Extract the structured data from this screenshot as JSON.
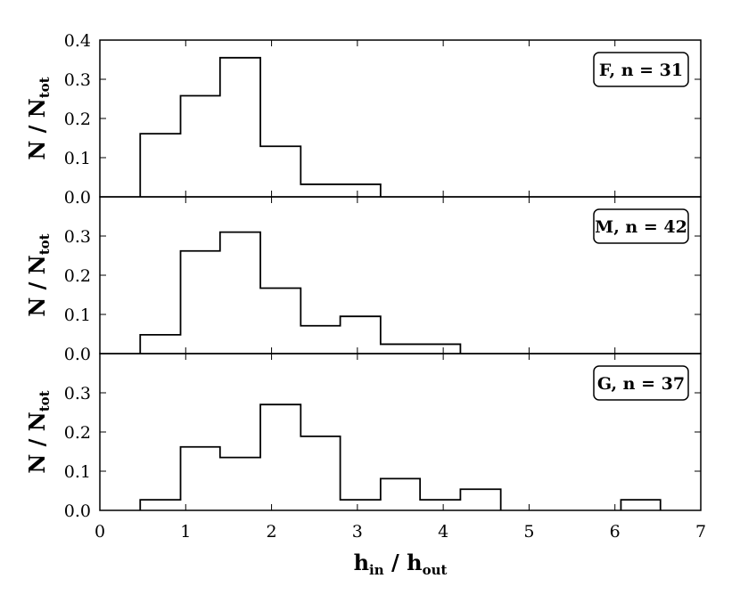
{
  "chart_data": {
    "type": "bar",
    "histtype": "step",
    "layout": "three vertically stacked panels sharing the x axis",
    "xlabel": {
      "main1": "h",
      "sub1": "in",
      "sep": " / ",
      "main2": "h",
      "sub2": "out"
    },
    "xlim": [
      0,
      7
    ],
    "xticks": [
      "0",
      "1",
      "2",
      "3",
      "4",
      "5",
      "6",
      "7"
    ],
    "grid": false,
    "bin_edges": [
      0.47,
      0.94,
      1.4,
      1.87,
      2.34,
      2.8,
      3.27,
      3.73,
      4.2,
      4.67,
      5.13,
      5.6,
      6.07,
      6.53
    ],
    "panels": [
      {
        "legend": "F, n = 31",
        "legend_position": "top-right",
        "ylabel": {
          "main1": "N",
          "sep": " / ",
          "main2": "N",
          "sub2": "tot"
        },
        "ylim": [
          0,
          0.4
        ],
        "yticks": [
          "0.0",
          "0.1",
          "0.2",
          "0.3",
          "0.4"
        ],
        "values": [
          0.161,
          0.258,
          0.355,
          0.129,
          0.032,
          0.032,
          0,
          0,
          0,
          0,
          0,
          0,
          0
        ]
      },
      {
        "legend": "M, n = 42",
        "legend_position": "top-right",
        "ylabel": {
          "main1": "N",
          "sep": " / ",
          "main2": "N",
          "sub2": "tot"
        },
        "ylim": [
          0,
          0.4
        ],
        "yticks": [
          "0.0",
          "0.1",
          "0.2",
          "0.3"
        ],
        "values": [
          0.048,
          0.262,
          0.31,
          0.167,
          0.071,
          0.095,
          0.024,
          0.024,
          0,
          0,
          0,
          0,
          0
        ]
      },
      {
        "legend": "G, n = 37",
        "legend_position": "top-right",
        "ylabel": {
          "main1": "N",
          "sep": " / ",
          "main2": "N",
          "sub2": "tot"
        },
        "ylim": [
          0,
          0.4
        ],
        "yticks": [
          "0.0",
          "0.1",
          "0.2",
          "0.3"
        ],
        "values": [
          0.027,
          0.162,
          0.135,
          0.27,
          0.189,
          0.027,
          0.081,
          0.027,
          0.054,
          0,
          0,
          0,
          0.027
        ]
      }
    ]
  }
}
